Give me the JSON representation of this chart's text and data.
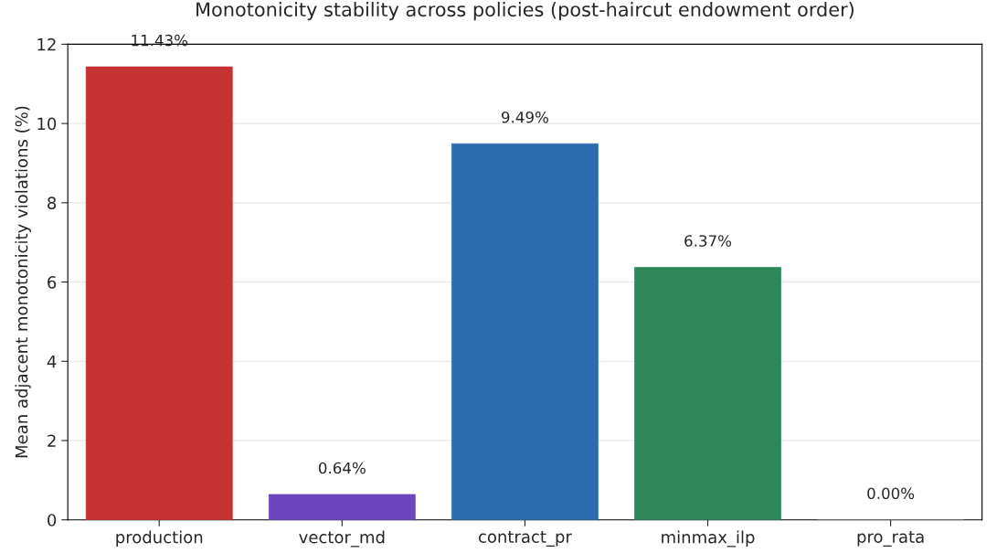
{
  "chart_data": {
    "type": "bar",
    "title": "Monotonicity stability across policies (post-haircut endowment order)",
    "ylabel": "Mean adjacent monotonicity violations (%)",
    "categories": [
      "production",
      "vector_md",
      "contract_pr",
      "minmax_ilp",
      "pro_rata"
    ],
    "values": [
      11.43,
      0.64,
      9.49,
      6.37,
      0.0
    ],
    "value_labels": [
      "11.43%",
      "0.64%",
      "9.49%",
      "6.37%",
      "0.00%"
    ],
    "colors": [
      "#c43232",
      "#6a46be",
      "#2c6db0",
      "#2e865a",
      "#7f7f7f"
    ],
    "ylim": [
      0,
      12
    ],
    "yticks": [
      0,
      2,
      4,
      6,
      8,
      10,
      12
    ],
    "grid": "y"
  }
}
